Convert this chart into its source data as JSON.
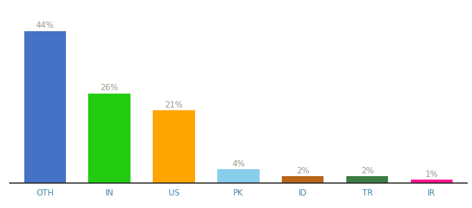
{
  "categories": [
    "OTH",
    "IN",
    "US",
    "PK",
    "ID",
    "TR",
    "IR"
  ],
  "values": [
    44,
    26,
    21,
    4,
    2,
    2,
    1
  ],
  "labels": [
    "44%",
    "26%",
    "21%",
    "4%",
    "2%",
    "2%",
    "1%"
  ],
  "bar_colors": [
    "#4472C4",
    "#22CC11",
    "#FFA500",
    "#87CEEB",
    "#B8651A",
    "#3A7D44",
    "#FF1493"
  ],
  "background_color": "#ffffff",
  "label_color": "#999988",
  "label_fontsize": 8.5,
  "tick_fontsize": 8.5,
  "tick_color": "#4488AA",
  "ylim": [
    0,
    50
  ],
  "bar_width": 0.65
}
